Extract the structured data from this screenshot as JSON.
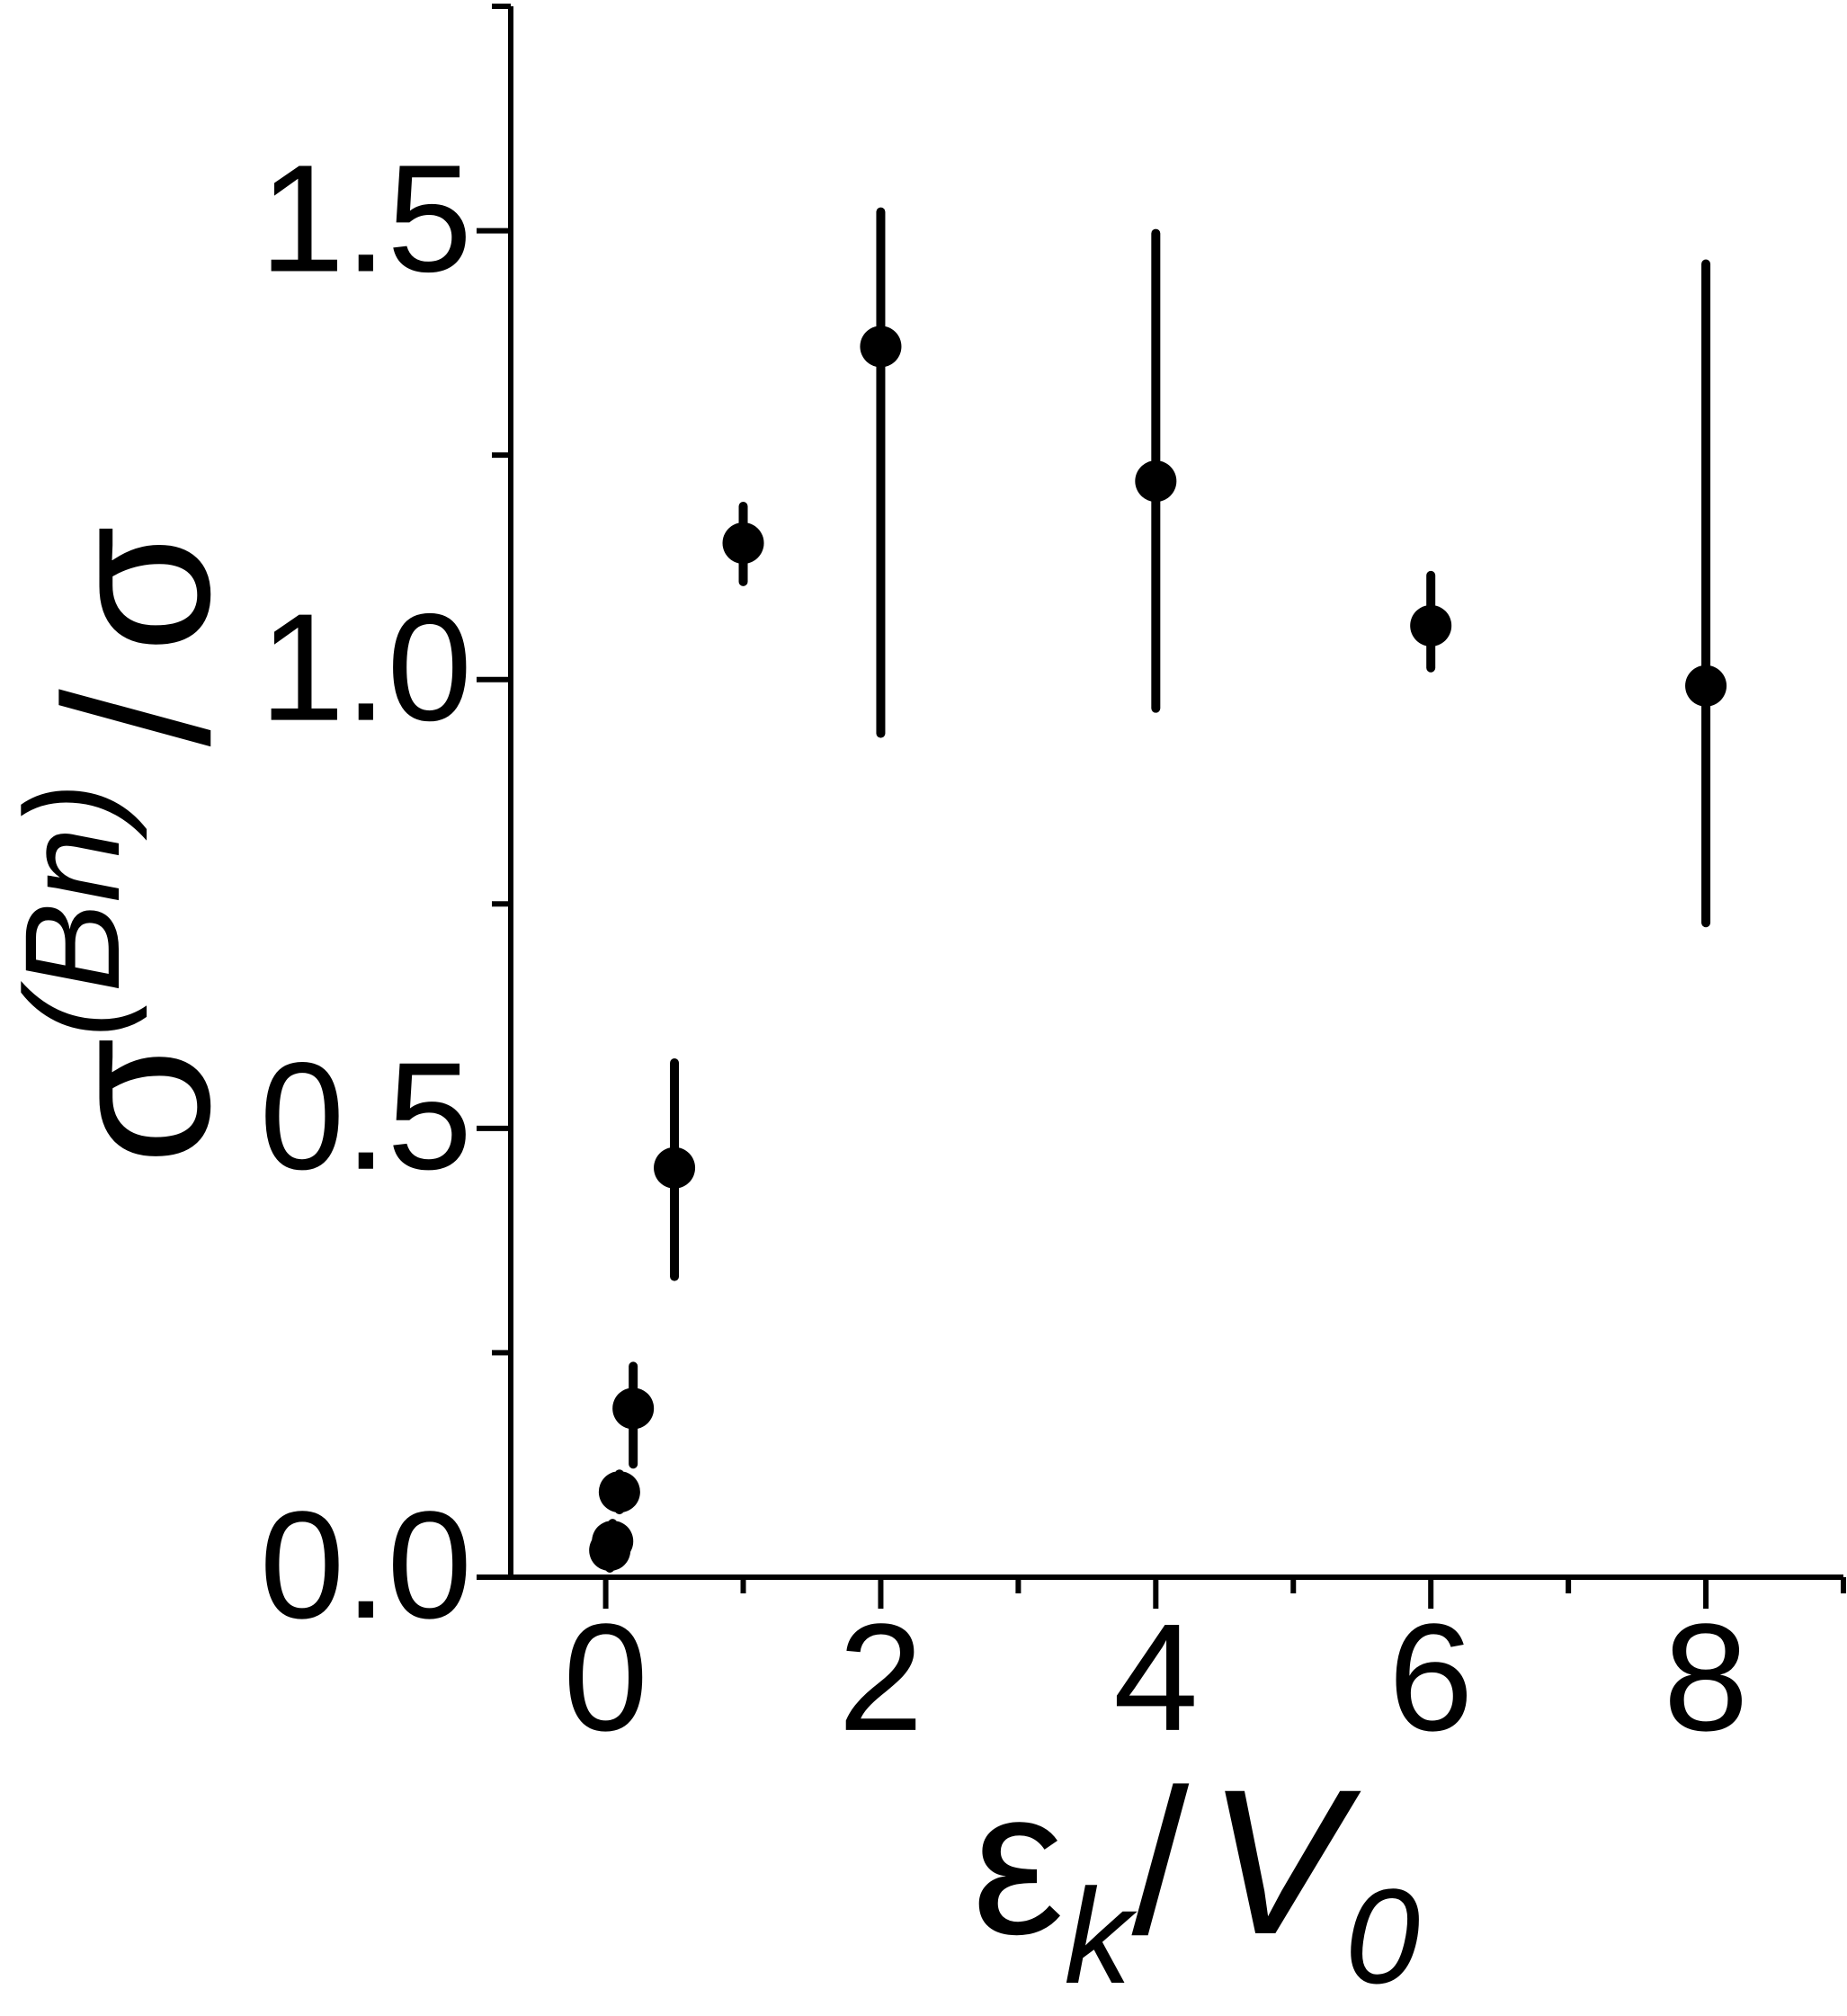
{
  "chart_data": {
    "type": "scatter",
    "x_label": {
      "base": "ε",
      "sub": "k",
      "sep": "/",
      "base2": "V",
      "sub2": "0"
    },
    "y_label": {
      "base": "σ",
      "sup": "(Bn)",
      "sep": "/",
      "base2": "σ"
    },
    "series": [
      {
        "color": "#000000",
        "x": [
          0.03,
          0.05,
          0.1,
          0.2,
          0.5,
          1,
          2,
          4,
          6,
          8
        ],
        "values": [
          0.03,
          0.04,
          0.095,
          0.188,
          0.456,
          1.152,
          1.371,
          1.221,
          1.06,
          0.993
        ],
        "yerr_lower": [
          0.02,
          0.02,
          0.02,
          0.062,
          0.121,
          0.043,
          0.431,
          0.253,
          0.047,
          0.264
        ],
        "yerr_upper": [
          0.02,
          0.02,
          0.02,
          0.047,
          0.117,
          0.041,
          0.15,
          0.276,
          0.056,
          0.47
        ]
      }
    ],
    "xlim": [
      -0.71,
      9.0
    ],
    "ylim": [
      0,
      1.75
    ],
    "xticks": [
      0,
      2,
      4,
      6,
      8
    ],
    "xminor_ticks": [
      1,
      3,
      5,
      7,
      9
    ],
    "yticks": [
      {
        "value": 0,
        "label": "0.0"
      },
      {
        "value": 0.5,
        "label": "0.5"
      },
      {
        "value": 1,
        "label": "1.0"
      },
      {
        "value": 1.5,
        "label": "1.5"
      }
    ],
    "yminor_ticks": [
      0.25,
      0.75,
      1.25,
      1.75
    ]
  }
}
